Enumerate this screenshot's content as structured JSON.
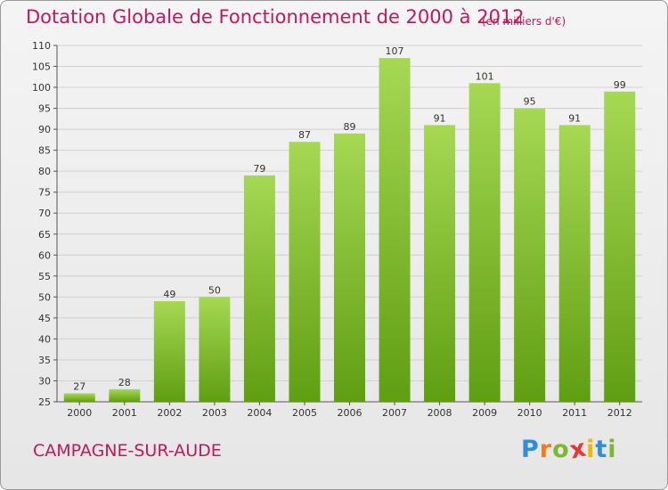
{
  "header": {
    "title": "Dotation Globale de Fonctionnement de 2000 à 2012",
    "subtitle": "(en milliers d'€)"
  },
  "footer": {
    "commune": "CAMPAGNE-SUR-AUDE",
    "logo_letters": [
      "P",
      "r",
      "o",
      "x",
      "i",
      "t",
      "i"
    ],
    "logo_colors": [
      "#2e8fd6",
      "#ef7d1a",
      "#7cb82f",
      "#e53935",
      "#f2b705",
      "#2e8fd6",
      "#7cb82f"
    ]
  },
  "colors": {
    "bar_light": "#a6d854",
    "bar_dark": "#5f9e12",
    "grid": "#d0d0d0",
    "text_accent": "#c2185b"
  },
  "chart_data": {
    "type": "bar",
    "title": "Dotation Globale de Fonctionnement de 2000 à 2012",
    "subtitle": "(en milliers d'€)",
    "xlabel": "",
    "ylabel": "",
    "categories": [
      "2000",
      "2001",
      "2002",
      "2003",
      "2004",
      "2005",
      "2006",
      "2007",
      "2008",
      "2009",
      "2010",
      "2011",
      "2012"
    ],
    "values": [
      27,
      28,
      49,
      50,
      79,
      87,
      89,
      107,
      91,
      101,
      95,
      91,
      99
    ],
    "ylim": [
      25,
      110
    ],
    "yticks": [
      25,
      30,
      35,
      40,
      45,
      50,
      55,
      60,
      65,
      70,
      75,
      80,
      85,
      90,
      95,
      100,
      105,
      110
    ],
    "grid": true,
    "data_labels": true
  }
}
